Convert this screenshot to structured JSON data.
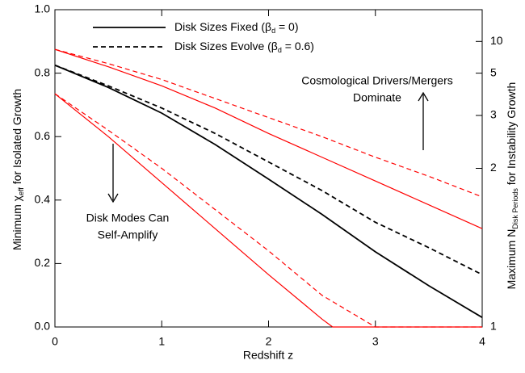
{
  "chart_data": {
    "type": "line",
    "xlabel": "Redshift z",
    "ylabel": [
      "Minimum  χ",
      "eff",
      "  for Isolated Growth"
    ],
    "y2label": [
      "Maximum  N",
      "Disk Periods",
      "  for Instability Growth"
    ],
    "xlim": [
      0,
      4
    ],
    "xticks": [
      0,
      1,
      2,
      3,
      4
    ],
    "ylim": [
      0,
      1
    ],
    "yticks": [
      {
        "value": 0,
        "label": "0.0"
      },
      {
        "value": 0.2,
        "label": "0.2"
      },
      {
        "value": 0.4,
        "label": "0.4"
      },
      {
        "value": 0.6,
        "label": "0.6"
      },
      {
        "value": 0.8,
        "label": "0.8"
      },
      {
        "value": 1,
        "label": "1.0"
      }
    ],
    "y2scale": "inverse",
    "y2ticks": [
      1,
      2,
      3,
      5,
      10
    ],
    "series": [
      {
        "name": [
          "Disk Sizes Fixed (β",
          "d",
          " = 0)"
        ],
        "color": "#000000",
        "dash": false,
        "x": [
          0,
          0.5,
          1,
          1.5,
          2,
          2.5,
          3,
          3.5,
          4
        ],
        "values": [
          0.825,
          0.755,
          0.674,
          0.575,
          0.466,
          0.355,
          0.237,
          0.13,
          0.03
        ]
      },
      {
        "name": [
          "Disk Sizes Evolve (β",
          "d",
          " = 0.6)"
        ],
        "color": "#000000",
        "dash": true,
        "x": [
          0,
          0.5,
          1,
          1.5,
          2,
          2.5,
          3,
          3.5,
          4
        ],
        "values": [
          0.825,
          0.76,
          0.69,
          0.61,
          0.52,
          0.43,
          0.33,
          0.25,
          0.165
        ]
      },
      {
        "color": "#ff0000",
        "dash": false,
        "x": [
          0,
          0.5,
          1,
          1.5,
          2,
          2.5,
          3,
          3.5,
          4
        ],
        "values": [
          0.875,
          0.82,
          0.76,
          0.69,
          0.61,
          0.535,
          0.46,
          0.385,
          0.31
        ]
      },
      {
        "color": "#ff0000",
        "dash": true,
        "x": [
          0,
          0.5,
          1,
          1.5,
          2,
          2.5,
          3,
          3.5,
          4
        ],
        "values": [
          0.875,
          0.83,
          0.78,
          0.72,
          0.66,
          0.6,
          0.535,
          0.475,
          0.41
        ]
      },
      {
        "color": "#ff0000",
        "dash": false,
        "x": [
          0,
          0.5,
          1,
          1.5,
          2,
          2.5,
          2.6,
          3,
          3.5,
          4
        ],
        "values": [
          0.735,
          0.6,
          0.455,
          0.31,
          0.165,
          0.025,
          0,
          0,
          0,
          0
        ]
      },
      {
        "color": "#ff0000",
        "dash": true,
        "x": [
          0,
          0.5,
          1,
          1.5,
          2,
          2.5,
          3,
          3.5,
          4
        ],
        "values": [
          0.735,
          0.62,
          0.5,
          0.37,
          0.24,
          0.1,
          0,
          0,
          0
        ]
      }
    ],
    "annotations": [
      [
        "Disk Modes Can",
        "Self-Amplify"
      ],
      [
        "Cosmological Drivers/Mergers",
        "Dominate"
      ]
    ]
  }
}
